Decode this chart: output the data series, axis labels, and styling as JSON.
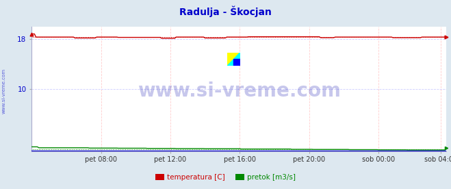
{
  "title": "Radulja - Škocjan",
  "title_color": "#0000cc",
  "title_fontsize": 10,
  "bg_color": "#dde8f0",
  "plot_bg_color": "#ffffff",
  "xlim": [
    0,
    287
  ],
  "ylim": [
    0,
    20
  ],
  "yticks": [
    10,
    18
  ],
  "xtick_labels": [
    "pet 08:00",
    "pet 12:00",
    "pet 16:00",
    "pet 20:00",
    "sob 00:00",
    "sob 04:00"
  ],
  "xtick_positions": [
    48,
    96,
    144,
    192,
    240,
    283
  ],
  "vgrid_color": "#ffcccc",
  "hgrid_color": "#ccccff",
  "watermark": "www.si-vreme.com",
  "watermark_color": "#0000aa",
  "watermark_alpha": 0.22,
  "watermark_fontsize": 20,
  "sidebar_text": "www.si-vreme.com",
  "sidebar_color": "#0000cc",
  "temp_color": "#cc0000",
  "pretok_color": "#008800",
  "visina_color": "#0000cc",
  "legend_items": [
    {
      "label": "temperatura [C]",
      "color": "#cc0000"
    },
    {
      "label": "pretok [m3/s]",
      "color": "#008800"
    }
  ],
  "temp_mean": 18.3,
  "pretok_mean": 0.45,
  "n_points": 288
}
